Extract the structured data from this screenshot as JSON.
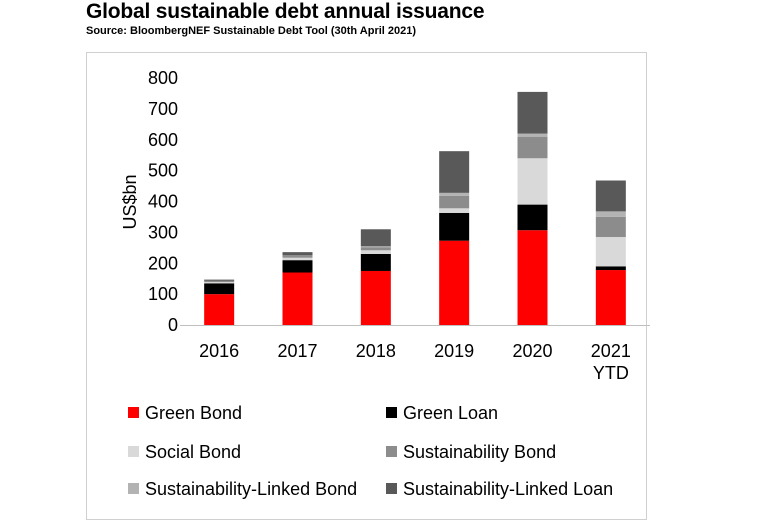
{
  "chart_data": {
    "type": "bar",
    "stacked": true,
    "title": "Global sustainable debt annual issuance",
    "subtitle": "Source: BloombergNEF Sustainable Debt Tool (30th April 2021)",
    "xlabel": "",
    "ylabel": "US$bn",
    "ylim": [
      0,
      800
    ],
    "yticks": [
      0,
      100,
      200,
      300,
      400,
      500,
      600,
      700,
      800
    ],
    "grid": false,
    "legend_position": "bottom",
    "categories": [
      [
        "2016"
      ],
      [
        "2017"
      ],
      [
        "2018"
      ],
      [
        "2019"
      ],
      [
        "2020"
      ],
      [
        "2021",
        "YTD"
      ]
    ],
    "series": [
      {
        "name": "Green Bond",
        "color": "#ff0000",
        "values": [
          100,
          170,
          175,
          273,
          307,
          178
        ]
      },
      {
        "name": "Green Loan",
        "color": "#000000",
        "values": [
          35,
          40,
          55,
          90,
          83,
          12
        ]
      },
      {
        "name": "Social Bond",
        "color": "#d9d9d9",
        "values": [
          4,
          8,
          12,
          15,
          150,
          95
        ]
      },
      {
        "name": "Sustainability Bond",
        "color": "#8c8c8c",
        "values": [
          4,
          8,
          10,
          40,
          70,
          65
        ]
      },
      {
        "name": "Sustainability-Linked Bond",
        "color": "#b3b3b3",
        "values": [
          0,
          0,
          3,
          10,
          10,
          18
        ]
      },
      {
        "name": "Sustainability-Linked Loan",
        "color": "#595959",
        "values": [
          4,
          10,
          55,
          135,
          135,
          100
        ]
      }
    ]
  }
}
